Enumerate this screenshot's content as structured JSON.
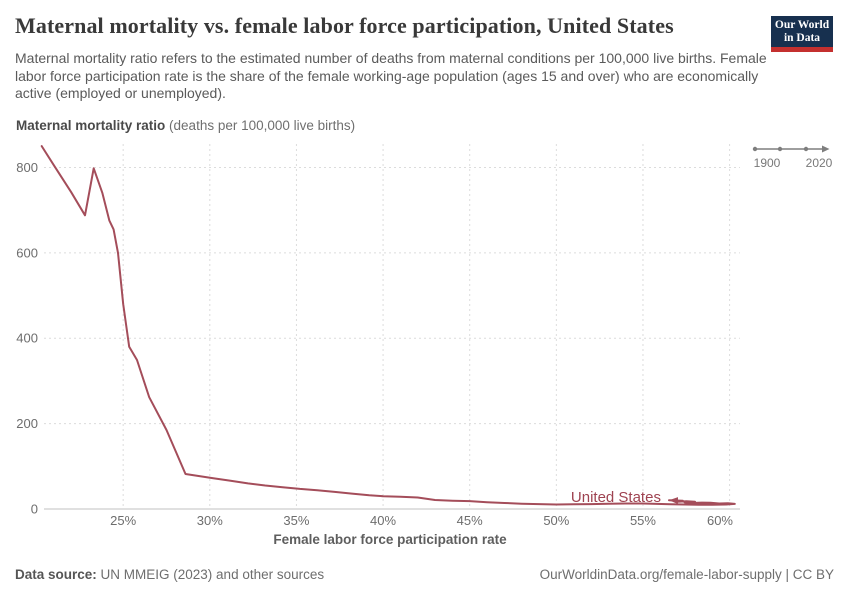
{
  "header": {
    "title": "Maternal mortality vs. female labor force participation, United States",
    "subtitle": "Maternal mortality ratio refers to the estimated number of deaths from maternal conditions per 100,000 live births. Female labor force participation rate is the share of the female working-age population (ages 15 and over) who are economically active (employed or unemployed).",
    "logo": {
      "line1": "Our World",
      "line2": "in Data",
      "bg_color": "#17304f",
      "bar_color": "#c4302f"
    }
  },
  "chart_data": {
    "type": "line",
    "ylabel_bold": "Maternal mortality ratio",
    "ylabel_units": " (deaths per 100,000 live births)",
    "xlabel": "Female labor force participation rate",
    "xlim": [
      20.2,
      60.6
    ],
    "ylim": [
      0,
      855
    ],
    "x_ticks": [
      25,
      30,
      35,
      40,
      45,
      50,
      55,
      60
    ],
    "x_tick_labels": [
      "25%",
      "30%",
      "35%",
      "40%",
      "45%",
      "50%",
      "55%",
      "60%"
    ],
    "y_ticks": [
      0,
      200,
      400,
      600,
      800
    ],
    "y_tick_labels": [
      "0",
      "200",
      "400",
      "600",
      "800"
    ],
    "grid": true,
    "legend_position": "end-of-line-label",
    "timeline": {
      "start": "1900",
      "end": "2020"
    },
    "series": [
      {
        "name": "United States",
        "color": "#a44d5a",
        "label_color": "#9e4250",
        "points": [
          [
            20.3,
            850
          ],
          [
            21.0,
            805
          ],
          [
            22.0,
            742
          ],
          [
            22.8,
            688
          ],
          [
            23.3,
            798
          ],
          [
            23.8,
            740
          ],
          [
            24.2,
            676
          ],
          [
            24.45,
            655
          ],
          [
            24.7,
            600
          ],
          [
            25.0,
            480
          ],
          [
            25.35,
            380
          ],
          [
            25.8,
            349
          ],
          [
            26.5,
            262
          ],
          [
            27.5,
            185
          ],
          [
            28.6,
            82
          ],
          [
            29.4,
            77
          ],
          [
            30.2,
            72
          ],
          [
            31.2,
            66
          ],
          [
            32.2,
            60
          ],
          [
            33.2,
            55
          ],
          [
            34.2,
            51
          ],
          [
            35.2,
            47
          ],
          [
            36.2,
            44
          ],
          [
            37.2,
            40
          ],
          [
            38.2,
            36
          ],
          [
            39.2,
            32
          ],
          [
            40.0,
            30
          ],
          [
            41.0,
            28.5
          ],
          [
            42.0,
            27
          ],
          [
            43.0,
            21
          ],
          [
            44.0,
            19.5
          ],
          [
            45.0,
            18.5
          ],
          [
            46.0,
            16
          ],
          [
            47.0,
            14
          ],
          [
            48.0,
            12.5
          ],
          [
            49.0,
            11.5
          ],
          [
            50.0,
            10.5
          ],
          [
            51.0,
            11
          ],
          [
            52.0,
            11.5
          ],
          [
            53.0,
            12.5
          ],
          [
            54.0,
            13
          ],
          [
            55.0,
            13
          ],
          [
            55.8,
            12
          ],
          [
            56.6,
            11
          ],
          [
            57.4,
            10.5
          ],
          [
            58.2,
            10
          ],
          [
            59.0,
            10
          ],
          [
            59.8,
            10.5
          ],
          [
            60.3,
            12
          ],
          [
            59.9,
            13.5
          ],
          [
            59.4,
            13
          ],
          [
            58.9,
            14.5
          ],
          [
            58.4,
            15
          ],
          [
            57.8,
            14
          ],
          [
            57.4,
            15.5
          ],
          [
            57.8,
            16.5
          ],
          [
            58.0,
            17
          ],
          [
            57.5,
            18
          ],
          [
            57.0,
            17
          ],
          [
            56.8,
            18.5
          ],
          [
            57.3,
            19.5
          ],
          [
            56.5,
            20.5
          ]
        ]
      }
    ]
  },
  "footer": {
    "source_label": "Data source:",
    "source_text": " UN MMEIG (2023) and other sources",
    "credit": "OurWorldinData.org/female-labor-supply | CC BY"
  },
  "colors": {
    "grid": "#dcdcdc",
    "axis": "#c2c2c2",
    "tick_text": "#6d6d6d",
    "timeline": "#7e7e7e"
  }
}
